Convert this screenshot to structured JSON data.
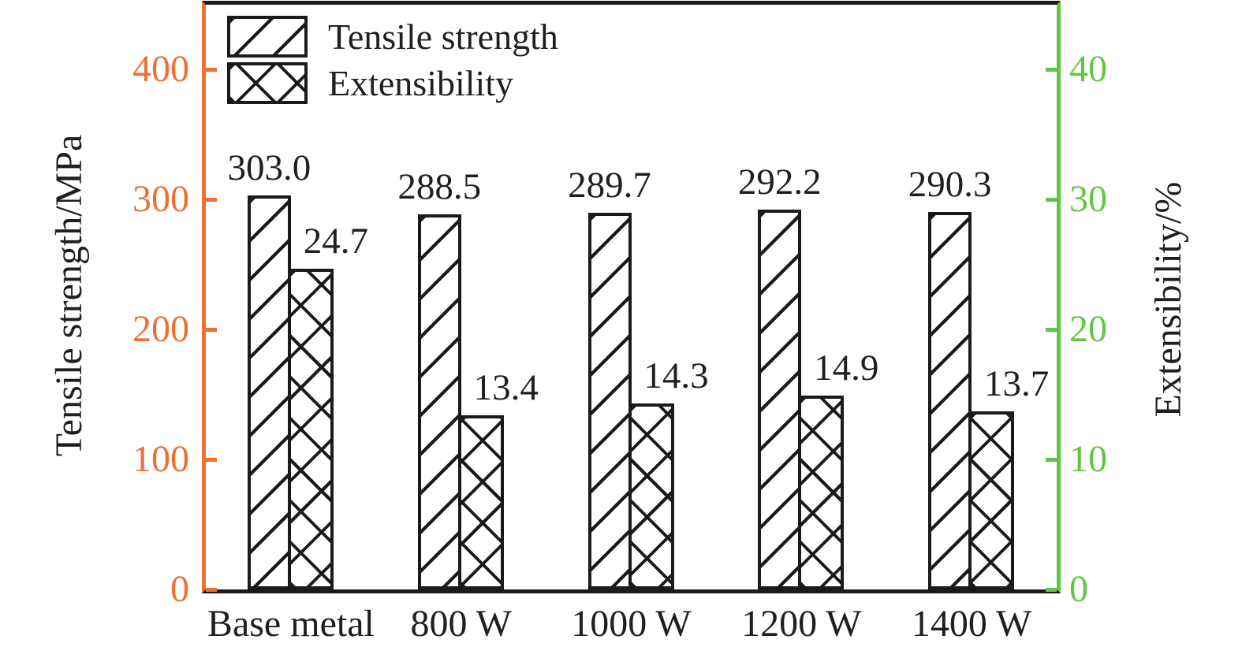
{
  "chart_data": {
    "type": "bar",
    "categories": [
      "Base metal",
      "800 W",
      "1000 W",
      "1200 W",
      "1400 W"
    ],
    "series": [
      {
        "name": "Tensile strength",
        "axis": "left",
        "hatch": "diagonal",
        "values": [
          303.0,
          288.5,
          289.7,
          292.2,
          290.3
        ],
        "labels": [
          "303.0",
          "288.5",
          "289.7",
          "292.2",
          "290.3"
        ]
      },
      {
        "name": "Extensibility",
        "axis": "right",
        "hatch": "cross",
        "values": [
          24.7,
          13.4,
          14.3,
          14.9,
          13.7
        ],
        "labels": [
          "24.7",
          "13.4",
          "14.3",
          "14.9",
          "13.7"
        ]
      }
    ],
    "left_axis": {
      "label": "Tensile strength/MPa",
      "ticks": [
        0,
        100,
        200,
        300,
        400
      ],
      "max": 450,
      "color": "#ED7032"
    },
    "right_axis": {
      "label": "Extensibility/%",
      "ticks": [
        0,
        10,
        20,
        30,
        40
      ],
      "max": 45,
      "color": "#62C643"
    },
    "legend": [
      "Tensile strength",
      "Extensibility"
    ],
    "legend_position": "top-left",
    "grid": false,
    "bar_fill": "#ffffff",
    "bar_edge_color": "#1a1a1a",
    "spine_colors": {
      "top": "#1a1a1a",
      "bottom": "#1a1a1a",
      "left": "#ED7032",
      "right": "#62C643"
    }
  }
}
